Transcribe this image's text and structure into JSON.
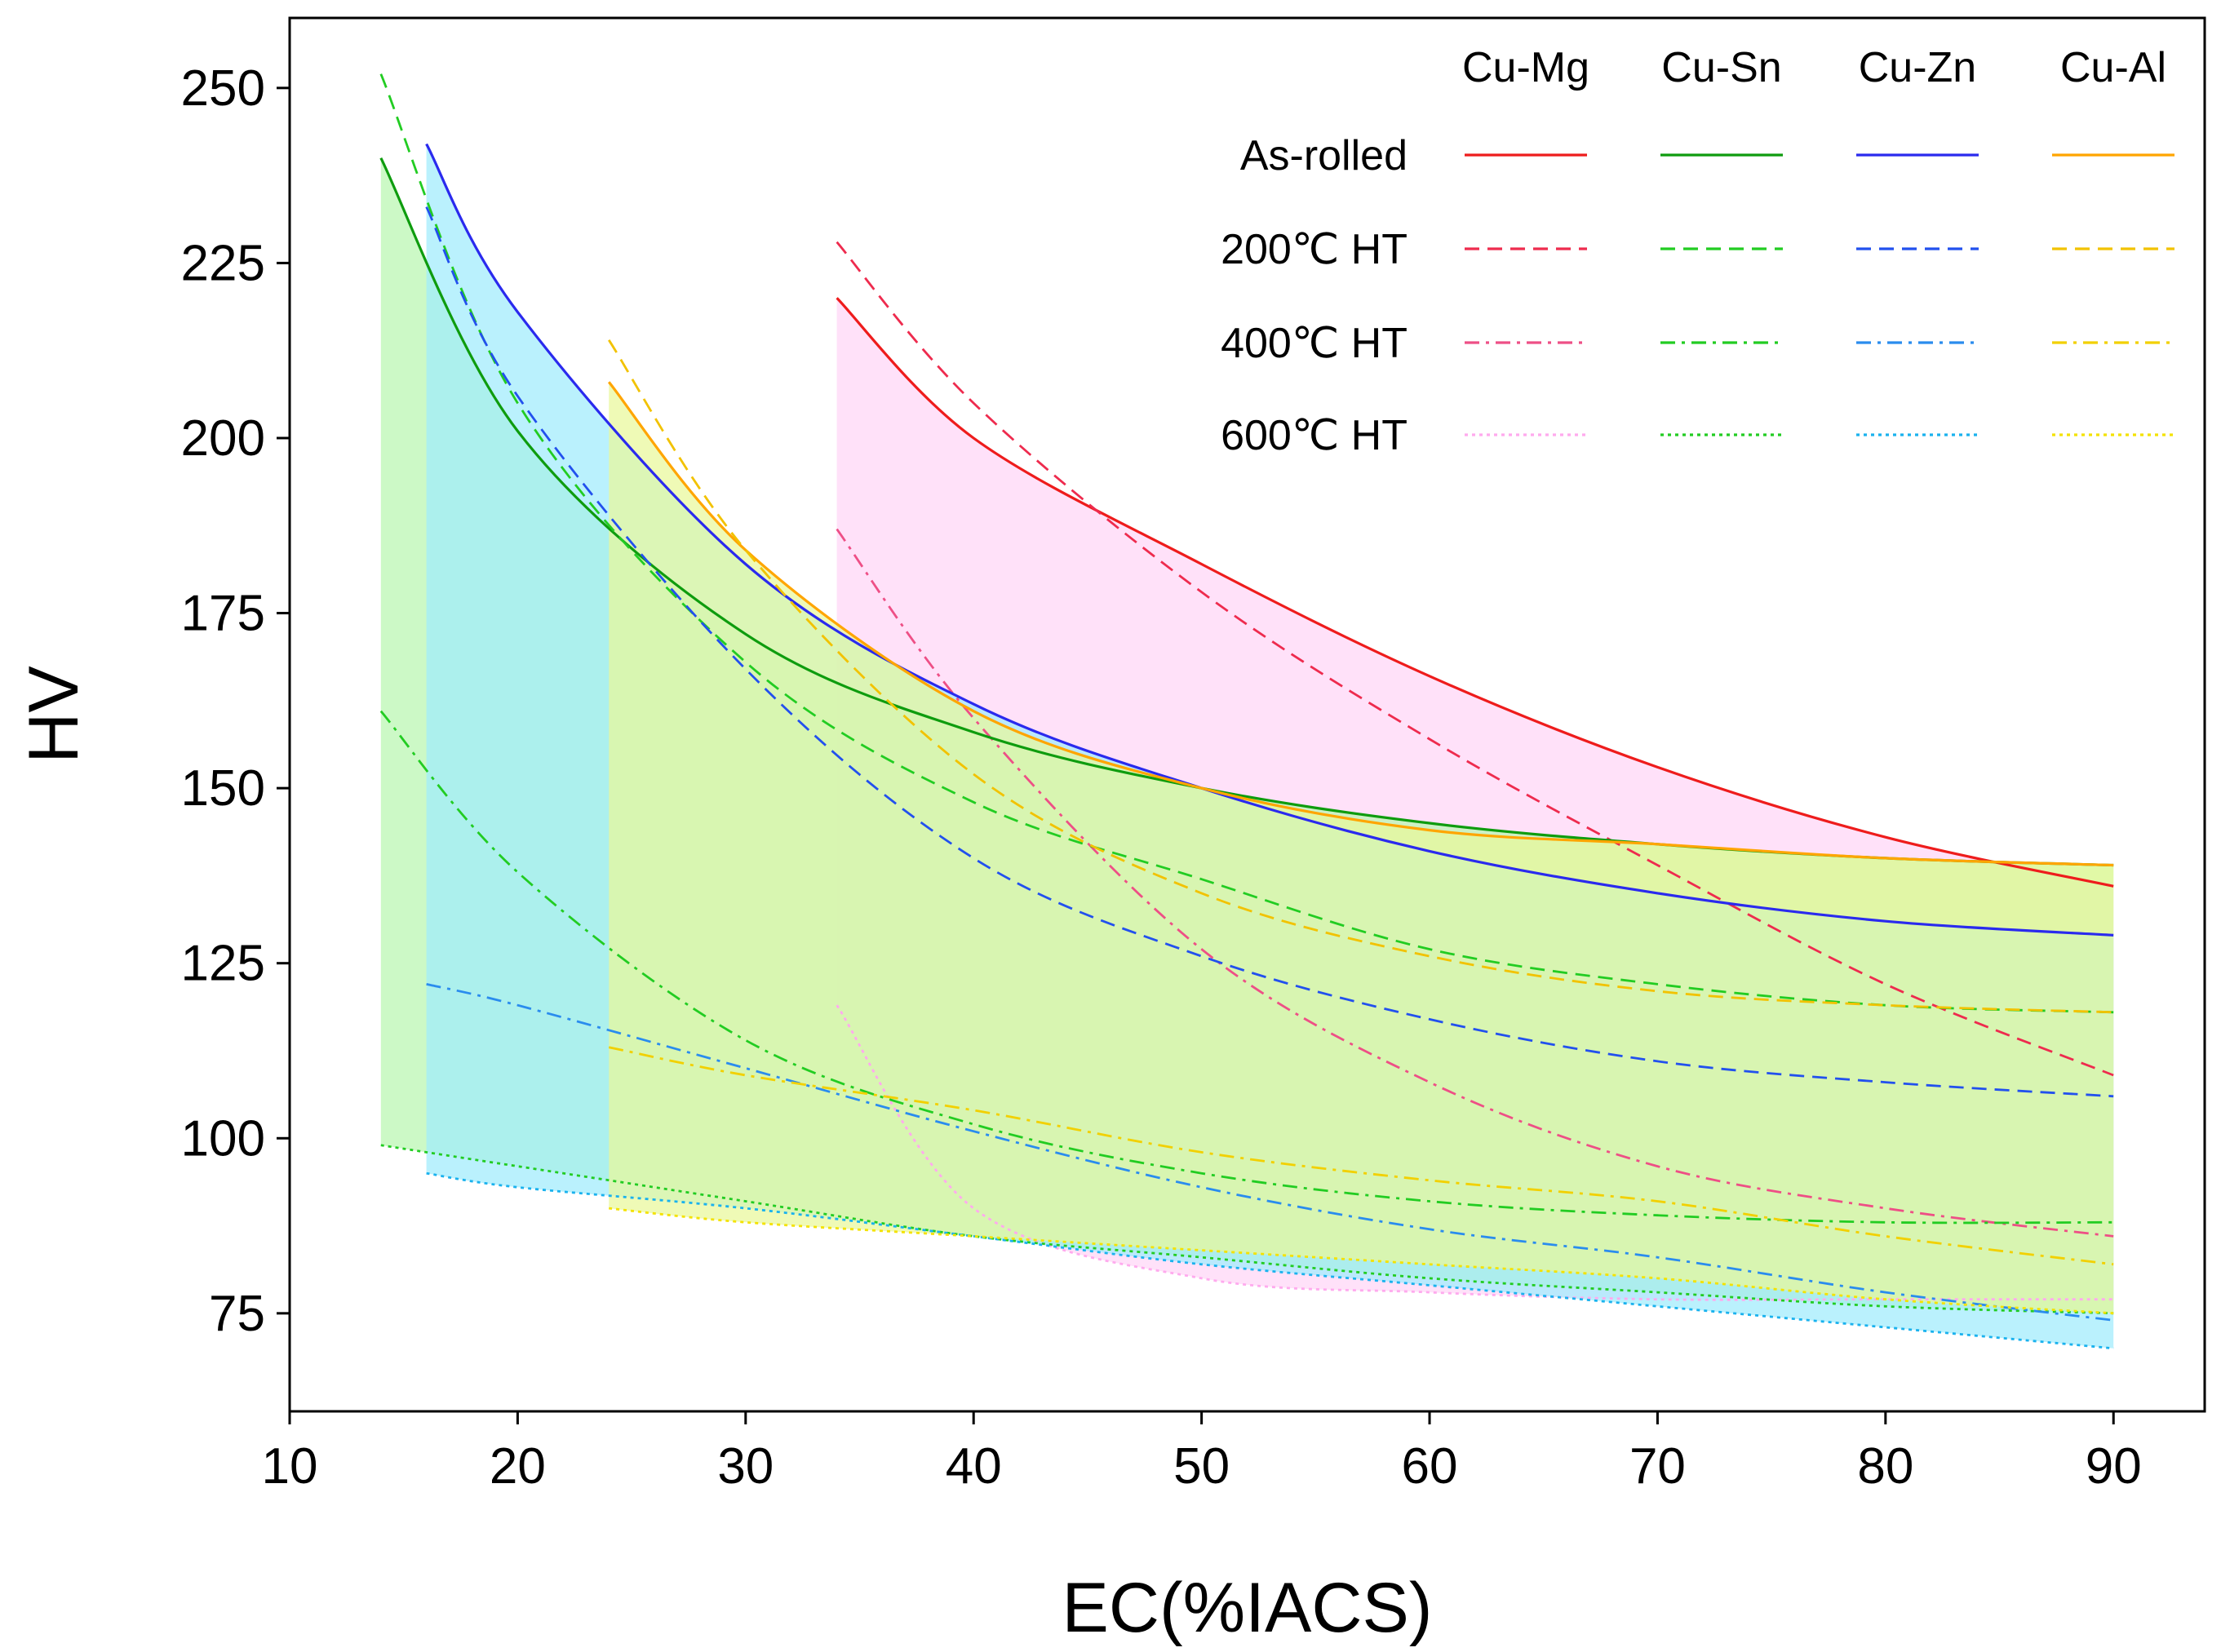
{
  "chart_data": {
    "type": "area",
    "title": "",
    "xlabel": "EC(%IACS)",
    "ylabel": "HV",
    "xlim": [
      10,
      94
    ],
    "ylim": [
      61,
      260
    ],
    "xticks": [
      10,
      20,
      30,
      40,
      50,
      60,
      70,
      80,
      90
    ],
    "yticks": [
      75,
      100,
      125,
      150,
      175,
      200,
      225,
      250
    ],
    "grid": false,
    "legend": {
      "placement": "top-right",
      "columns": [
        "Cu-Mg",
        "Cu-Sn",
        "Cu-Zn",
        "Cu-Al"
      ],
      "rows": [
        "As-rolled",
        "200℃ HT",
        "400℃ HT",
        "600℃ HT"
      ]
    },
    "styles": {
      "As-rolled": "solid",
      "200℃ HT": "dashed",
      "400℃ HT": "dashdot",
      "600℃ HT": "dotted"
    },
    "systems": [
      {
        "name": "Cu-Mg",
        "x_start": 34,
        "fill_color": "#ffd6f6",
        "series": [
          {
            "condition": "As-rolled",
            "color": "#ee1c1c",
            "x": [
              34,
              40,
              50,
              60,
              70,
              80,
              90
            ],
            "y": [
              220,
              200,
              182,
              166,
              153,
              143,
              136
            ]
          },
          {
            "condition": "200℃ HT",
            "color": "#ee2b4e",
            "x": [
              34,
              40,
              50,
              60,
              70,
              80,
              90
            ],
            "y": [
              228,
              205,
              178,
              157,
              139,
              122,
              109
            ]
          },
          {
            "condition": "400℃ HT",
            "color": "#ee4f86",
            "x": [
              34,
              40,
              50,
              60,
              70,
              80,
              90
            ],
            "y": [
              187,
              160,
              127,
              108,
              96,
              90,
              86
            ]
          },
          {
            "condition": "600℃ HT",
            "color": "#ffaaee",
            "x": [
              34,
              40,
              50,
              60,
              70,
              80,
              90
            ],
            "y": [
              119,
              90,
              80,
              78,
              77,
              77,
              77
            ]
          }
        ]
      },
      {
        "name": "Cu-Sn",
        "x_start": 14,
        "fill_color": "#b8f7b0",
        "series": [
          {
            "condition": "As-rolled",
            "color": "#0e9c0e",
            "x": [
              14,
              20,
              30,
              40,
              50,
              60,
              70,
              80,
              90
            ],
            "y": [
              240,
              201,
              172,
              158,
              150,
              145,
              142,
              140,
              139
            ]
          },
          {
            "condition": "200℃ HT",
            "color": "#22cc22",
            "x": [
              14,
              20,
              30,
              40,
              50,
              60,
              70,
              80,
              90
            ],
            "y": [
              252,
              205,
              168,
              148,
              137,
              127,
              122,
              119,
              118
            ]
          },
          {
            "condition": "400℃ HT",
            "color": "#22cc22",
            "x": [
              14,
              20,
              30,
              40,
              50,
              60,
              70,
              80,
              90
            ],
            "y": [
              161,
              138,
              114,
              102,
              95,
              91,
              89,
              88,
              88
            ]
          },
          {
            "condition": "600℃ HT",
            "color": "#22cc22",
            "x": [
              14,
              20,
              30,
              40,
              50,
              60,
              70,
              80,
              90
            ],
            "y": [
              99,
              96,
              91,
              86,
              83,
              80,
              78,
              76,
              75
            ]
          }
        ]
      },
      {
        "name": "Cu-Zn",
        "x_start": 16,
        "fill_color": "#a0ecfc",
        "series": [
          {
            "condition": "As-rolled",
            "color": "#2a2aee",
            "x": [
              16,
              20,
              30,
              40,
              50,
              60,
              70,
              80,
              90
            ],
            "y": [
              242,
              218,
              182,
              162,
              150,
              141,
              135,
              131,
              129
            ]
          },
          {
            "condition": "200℃ HT",
            "color": "#2250ee",
            "x": [
              16,
              20,
              30,
              40,
              50,
              60,
              70,
              80,
              90
            ],
            "y": [
              233,
              206,
              167,
              140,
              126,
              117,
              111,
              108,
              106
            ]
          },
          {
            "condition": "400℃ HT",
            "color": "#2a8cee",
            "x": [
              16,
              20,
              30,
              40,
              50,
              60,
              70,
              80,
              90
            ],
            "y": [
              122,
              119,
              110,
              101,
              93,
              87,
              83,
              78,
              74
            ]
          },
          {
            "condition": "600℃ HT",
            "color": "#1ab2ee",
            "x": [
              16,
              20,
              30,
              40,
              50,
              60,
              70,
              80,
              90
            ],
            "y": [
              95,
              93,
              90,
              86,
              82,
              79,
              76,
              73,
              70
            ]
          }
        ]
      },
      {
        "name": "Cu-Al",
        "x_start": 24,
        "fill_color": "#e9f89a",
        "series": [
          {
            "condition": "As-rolled",
            "color": "#ffa500",
            "x": [
              24,
              30,
              40,
              50,
              60,
              70,
              80,
              90
            ],
            "y": [
              208,
              184,
              161,
              150,
              144,
              142,
              140,
              139
            ]
          },
          {
            "condition": "200℃ HT",
            "color": "#f2c200",
            "x": [
              24,
              30,
              40,
              50,
              60,
              70,
              80,
              90
            ],
            "y": [
              214,
              184,
              152,
              135,
              126,
              121,
              119,
              118
            ]
          },
          {
            "condition": "400℃ HT",
            "color": "#f2d000",
            "x": [
              24,
              30,
              40,
              50,
              60,
              70,
              80,
              90
            ],
            "y": [
              113,
              109,
              104,
              98,
              94,
              91,
              86,
              82
            ]
          },
          {
            "condition": "600℃ HT",
            "color": "#f4e200",
            "x": [
              24,
              30,
              40,
              50,
              60,
              70,
              80,
              90
            ],
            "y": [
              90,
              88,
              86,
              84,
              82,
              80,
              77,
              75
            ]
          }
        ]
      }
    ]
  }
}
